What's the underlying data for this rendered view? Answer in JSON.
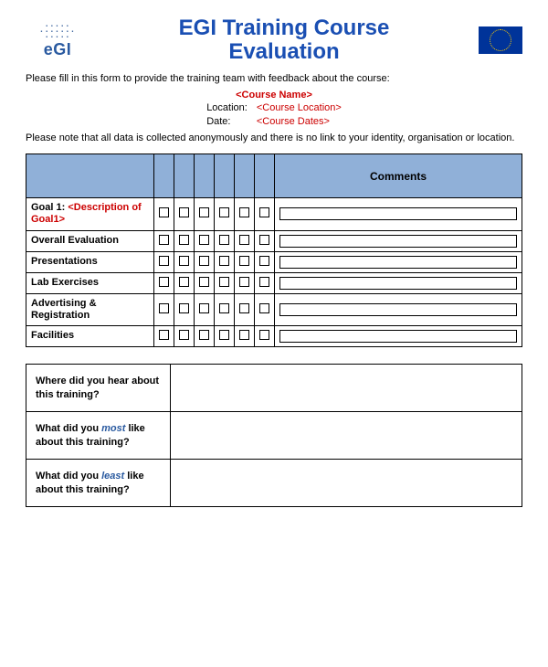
{
  "colors": {
    "title": "#1a4fb3",
    "placeholder": "#cc0000",
    "header_bg": "#90b0d8",
    "flag_bg": "#003399",
    "flag_stars": "#ffcc00",
    "emphasis": "#2a5aa0",
    "text": "#000000"
  },
  "logo": {
    "text": "eGI"
  },
  "title_line1": "EGI Training Course",
  "title_line2": "Evaluation",
  "intro": "Please fill in this form to provide the training team with feedback about the course:",
  "course": {
    "name": "<Course Name>",
    "location_label": "Location:",
    "location_value": "<Course Location>",
    "date_label": "Date:",
    "date_value": "<Course Dates>"
  },
  "note": "Please note that all data is collected anonymously and there is no link to your identity, organisation or location.",
  "eval_table": {
    "header_comments": "Comments",
    "checkbox_count": 6,
    "rows": [
      {
        "prefix": "Goal 1: ",
        "desc": "<Description of Goal1>",
        "is_goal": true
      },
      {
        "label": "Overall Evaluation"
      },
      {
        "label": "Presentations"
      },
      {
        "label": "Lab Exercises"
      },
      {
        "label": "Advertising & Registration"
      },
      {
        "label": "Facilities"
      }
    ]
  },
  "questions": [
    {
      "text_pre": "Where did you hear about this training?",
      "em": "",
      "text_post": ""
    },
    {
      "text_pre": "What did you ",
      "em": "most",
      "text_post": " like about this training?"
    },
    {
      "text_pre": "What did you ",
      "em": "least",
      "text_post": " like about this training?"
    }
  ]
}
